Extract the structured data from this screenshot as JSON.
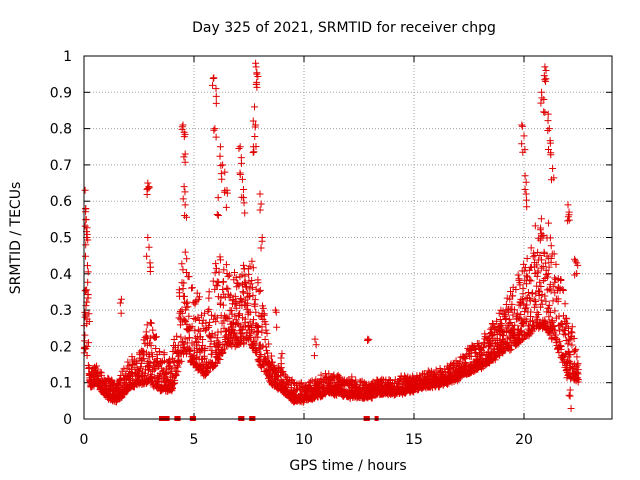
{
  "chart_data": {
    "type": "scatter",
    "title": "Day 325 of 2021, SRMTID for receiver chpg",
    "xlabel": "GPS time / hours",
    "ylabel": "SRMTID / TECUs",
    "xlim": [
      0,
      24
    ],
    "ylim": [
      0,
      1
    ],
    "xticks": [
      "0",
      "5",
      "10",
      "15",
      "20"
    ],
    "yticks": [
      "0",
      "0.1",
      "0.2",
      "0.3",
      "0.4",
      "0.5",
      "0.6",
      "0.7",
      "0.8",
      "0.9",
      "1"
    ],
    "grid": true,
    "marker": "+",
    "color": "#e00000",
    "envelope": [
      [
        0.0,
        0.18,
        0.3
      ],
      [
        0.1,
        0.2,
        0.6
      ],
      [
        0.3,
        0.09,
        0.14
      ],
      [
        0.6,
        0.1,
        0.15
      ],
      [
        1.0,
        0.06,
        0.12
      ],
      [
        1.5,
        0.05,
        0.1
      ],
      [
        2.0,
        0.08,
        0.17
      ],
      [
        2.5,
        0.1,
        0.18
      ],
      [
        3.0,
        0.1,
        0.3
      ],
      [
        3.5,
        0.08,
        0.2
      ],
      [
        4.0,
        0.08,
        0.16
      ],
      [
        4.5,
        0.18,
        0.5
      ],
      [
        5.0,
        0.15,
        0.4
      ],
      [
        5.5,
        0.12,
        0.3
      ],
      [
        6.0,
        0.15,
        0.48
      ],
      [
        6.5,
        0.2,
        0.45
      ],
      [
        7.0,
        0.2,
        0.4
      ],
      [
        7.5,
        0.22,
        0.48
      ],
      [
        8.0,
        0.15,
        0.38
      ],
      [
        8.5,
        0.1,
        0.18
      ],
      [
        9.0,
        0.08,
        0.14
      ],
      [
        9.5,
        0.05,
        0.11
      ],
      [
        10.0,
        0.05,
        0.1
      ],
      [
        10.5,
        0.06,
        0.11
      ],
      [
        11.0,
        0.07,
        0.13
      ],
      [
        11.5,
        0.07,
        0.13
      ],
      [
        12.0,
        0.06,
        0.12
      ],
      [
        12.5,
        0.06,
        0.11
      ],
      [
        13.0,
        0.06,
        0.11
      ],
      [
        13.5,
        0.07,
        0.11
      ],
      [
        14.0,
        0.07,
        0.11
      ],
      [
        14.5,
        0.07,
        0.12
      ],
      [
        15.0,
        0.08,
        0.12
      ],
      [
        15.5,
        0.09,
        0.13
      ],
      [
        16.0,
        0.09,
        0.14
      ],
      [
        16.5,
        0.1,
        0.15
      ],
      [
        17.0,
        0.11,
        0.17
      ],
      [
        17.5,
        0.13,
        0.2
      ],
      [
        18.0,
        0.14,
        0.22
      ],
      [
        18.5,
        0.16,
        0.26
      ],
      [
        19.0,
        0.18,
        0.32
      ],
      [
        19.5,
        0.2,
        0.38
      ],
      [
        20.0,
        0.22,
        0.45
      ],
      [
        20.5,
        0.25,
        0.55
      ],
      [
        21.0,
        0.25,
        0.6
      ],
      [
        21.5,
        0.2,
        0.45
      ],
      [
        22.0,
        0.12,
        0.3
      ],
      [
        22.5,
        0.1,
        0.2
      ]
    ],
    "spikes": [
      [
        0.05,
        0.63
      ],
      [
        0.08,
        0.58
      ],
      [
        0.1,
        0.55
      ],
      [
        0.12,
        0.5
      ],
      [
        1.7,
        0.33
      ],
      [
        2.9,
        0.65
      ],
      [
        2.95,
        0.64
      ],
      [
        2.9,
        0.5
      ],
      [
        3.0,
        0.43
      ],
      [
        4.5,
        0.81
      ],
      [
        4.55,
        0.79
      ],
      [
        4.6,
        0.73
      ],
      [
        4.55,
        0.64
      ],
      [
        4.6,
        0.59
      ],
      [
        5.9,
        0.94
      ],
      [
        6.0,
        0.91
      ],
      [
        5.95,
        0.8
      ],
      [
        6.2,
        0.75
      ],
      [
        6.3,
        0.7
      ],
      [
        6.4,
        0.68
      ],
      [
        6.1,
        0.61
      ],
      [
        6.5,
        0.63
      ],
      [
        7.1,
        0.75
      ],
      [
        7.15,
        0.72
      ],
      [
        7.2,
        0.66
      ],
      [
        7.25,
        0.61
      ],
      [
        7.8,
        0.98
      ],
      [
        7.82,
        0.97
      ],
      [
        7.85,
        0.95
      ],
      [
        7.75,
        0.86
      ],
      [
        7.8,
        0.81
      ],
      [
        7.7,
        0.75
      ],
      [
        8.0,
        0.62
      ],
      [
        8.1,
        0.5
      ],
      [
        8.7,
        0.3
      ],
      [
        9.0,
        0.18
      ],
      [
        10.5,
        0.22
      ],
      [
        12.9,
        0.22
      ],
      [
        19.9,
        0.81
      ],
      [
        20.0,
        0.78
      ],
      [
        20.05,
        0.67
      ],
      [
        20.1,
        0.62
      ],
      [
        20.8,
        0.9
      ],
      [
        20.9,
        0.88
      ],
      [
        20.95,
        0.97
      ],
      [
        21.0,
        0.96
      ],
      [
        21.1,
        0.84
      ],
      [
        21.15,
        0.8
      ],
      [
        21.2,
        0.76
      ],
      [
        21.3,
        0.69
      ],
      [
        22.0,
        0.59
      ],
      [
        22.05,
        0.57
      ],
      [
        22.4,
        0.43
      ],
      [
        22.3,
        0.44
      ],
      [
        21.9,
        0.18
      ],
      [
        22.0,
        0.12
      ],
      [
        22.1,
        0.08
      ]
    ],
    "zero_markers": [
      3.5,
      3.6,
      3.7,
      3.8,
      4.2,
      4.3,
      4.9,
      5.0,
      7.1,
      7.2,
      7.6,
      7.7,
      12.8,
      12.9,
      13.3
    ]
  }
}
